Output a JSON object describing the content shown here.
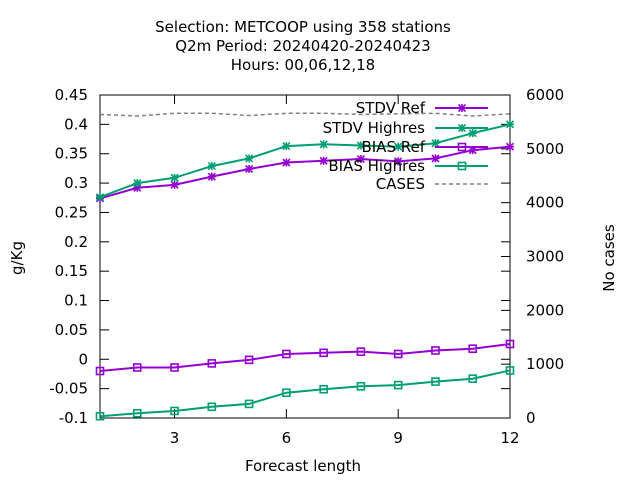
{
  "chart_data": {
    "type": "line",
    "title_lines": [
      "Selection: METCOOP using   358 stations",
      "Q2m   Period: 20240420-20240423",
      "Hours:  00,06,12,18"
    ],
    "xlabel": "Forecast length",
    "ylabel": "g/Kg",
    "y2label": "No cases",
    "xlim": [
      1,
      12
    ],
    "ylim": [
      -0.1,
      0.45
    ],
    "y2lim": [
      0,
      6000
    ],
    "xticks": [
      3,
      6,
      9,
      12
    ],
    "yticks": [
      -0.1,
      -0.05,
      0,
      0.05,
      0.1,
      0.15,
      0.2,
      0.25,
      0.3,
      0.35,
      0.4,
      0.45
    ],
    "ytick_labels": [
      "-0.1",
      "-0.05",
      "0",
      "0.05",
      "0.1",
      "0.15",
      "0.2",
      "0.25",
      "0.3",
      "0.35",
      "0.4",
      "0.45"
    ],
    "y2ticks": [
      0,
      1000,
      2000,
      3000,
      4000,
      5000,
      6000
    ],
    "grid": false,
    "legend_position": "top-right",
    "x": [
      1,
      2,
      3,
      4,
      5,
      6,
      7,
      8,
      9,
      10,
      11,
      12
    ],
    "series": [
      {
        "name": "STDV Ref",
        "axis": "y",
        "color": "#9400d3",
        "marker": "star",
        "dashed": false,
        "values": [
          0.274,
          0.292,
          0.297,
          0.311,
          0.324,
          0.335,
          0.338,
          0.341,
          0.337,
          0.342,
          0.356,
          0.362
        ]
      },
      {
        "name": "STDV Highres",
        "axis": "y",
        "color": "#009e73",
        "marker": "star",
        "dashed": false,
        "values": [
          0.276,
          0.3,
          0.309,
          0.329,
          0.342,
          0.363,
          0.366,
          0.364,
          0.362,
          0.368,
          0.385,
          0.4
        ]
      },
      {
        "name": "BIAS Ref",
        "axis": "y",
        "color": "#9400d3",
        "marker": "square",
        "dashed": false,
        "values": [
          -0.02,
          -0.014,
          -0.014,
          -0.007,
          -0.001,
          0.009,
          0.011,
          0.013,
          0.009,
          0.015,
          0.018,
          0.026
        ]
      },
      {
        "name": "BIAS Highres",
        "axis": "y",
        "color": "#009e73",
        "marker": "square",
        "dashed": false,
        "values": [
          -0.097,
          -0.092,
          -0.088,
          -0.081,
          -0.076,
          -0.057,
          -0.051,
          -0.046,
          -0.044,
          -0.038,
          -0.033,
          -0.019
        ]
      },
      {
        "name": "CASES",
        "axis": "y2",
        "color": "#808080",
        "marker": "none",
        "dashed": true,
        "values": [
          5640,
          5610,
          5660,
          5660,
          5620,
          5660,
          5660,
          5640,
          5650,
          5660,
          5610,
          5650
        ]
      }
    ]
  }
}
